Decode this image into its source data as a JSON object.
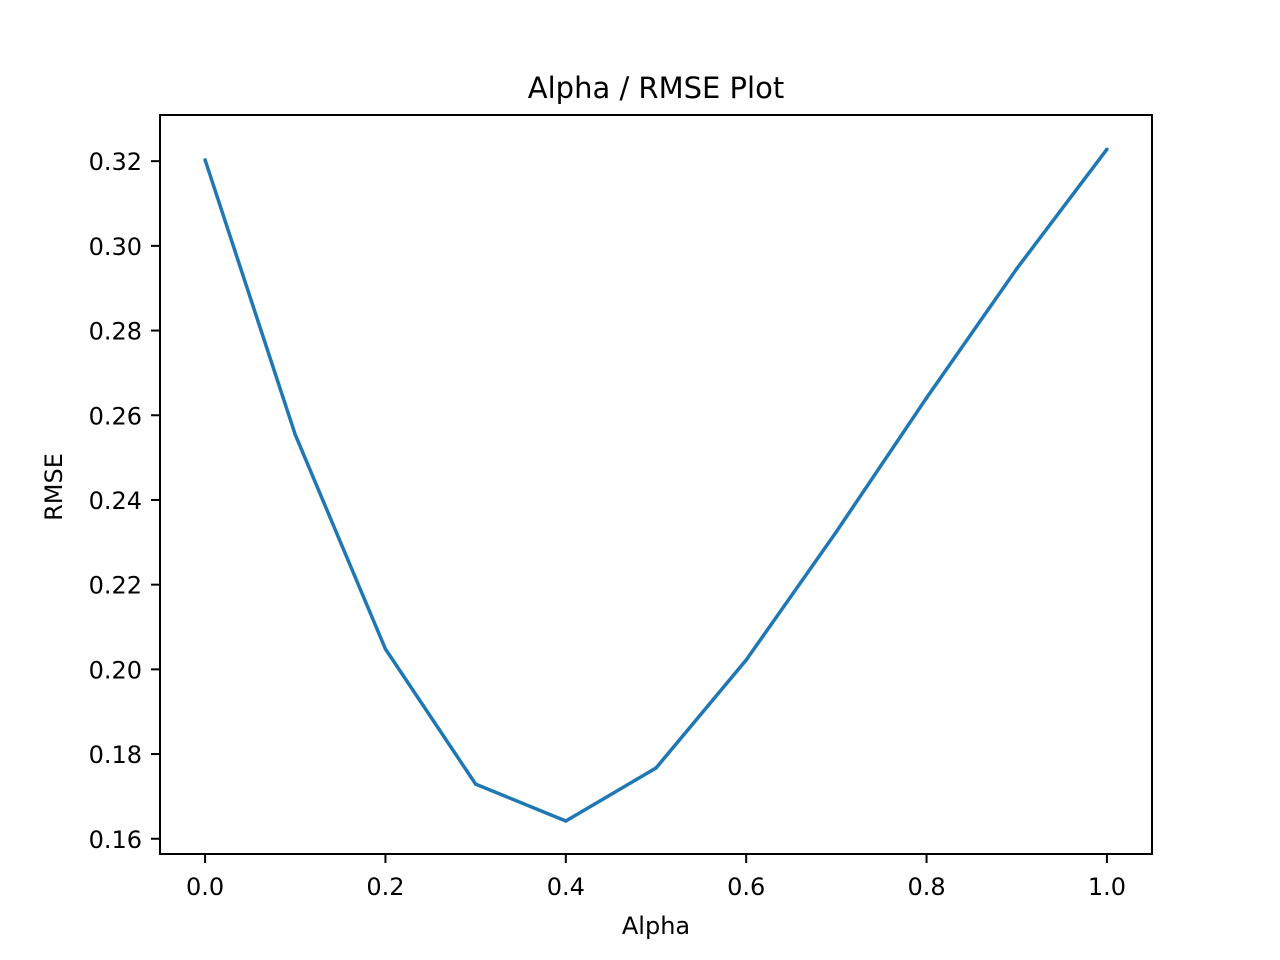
{
  "chart_data": {
    "type": "line",
    "title": "Alpha / RMSE Plot",
    "xlabel": "Alpha",
    "ylabel": "RMSE",
    "xlim": [
      -0.05,
      1.05
    ],
    "ylim": [
      0.1564,
      0.3309
    ],
    "x_ticks": [
      "0.0",
      "0.2",
      "0.4",
      "0.6",
      "0.8",
      "1.0"
    ],
    "y_ticks": [
      "0.16",
      "0.18",
      "0.20",
      "0.22",
      "0.24",
      "0.26",
      "0.28",
      "0.30",
      "0.32"
    ],
    "grid": false,
    "series": [
      {
        "color": "#1f77b4",
        "x": [
          0.0,
          0.1,
          0.2,
          0.3,
          0.4,
          0.5,
          0.6,
          0.7,
          0.8,
          0.9,
          1.0
        ],
        "y": [
          0.3203,
          0.2554,
          0.2048,
          0.1729,
          0.1642,
          0.1767,
          0.2022,
          0.2325,
          0.2641,
          0.2946,
          0.3228
        ]
      }
    ]
  }
}
